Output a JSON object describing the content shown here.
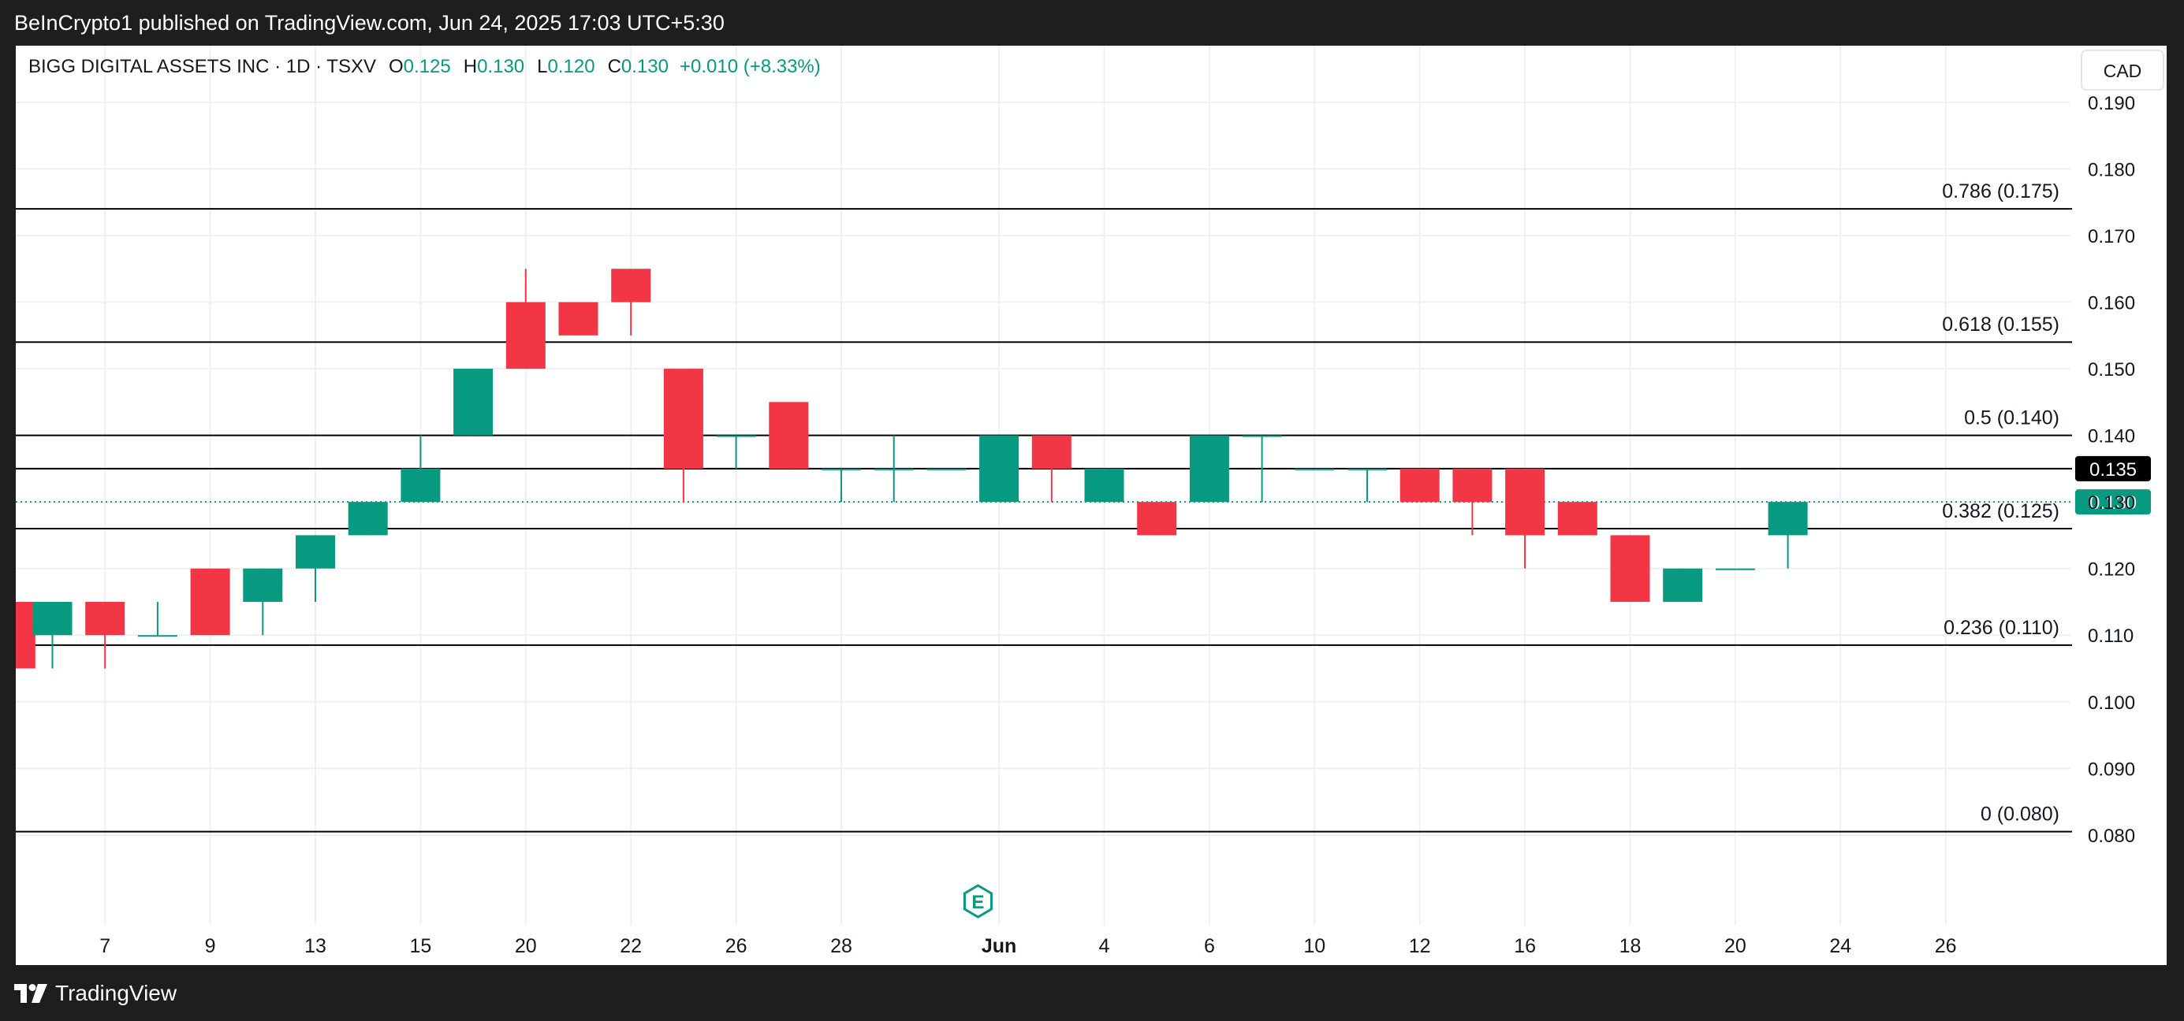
{
  "header": {
    "published": "BeInCrypto1 published on TradingView.com, Jun 24, 2025 17:03 UTC+5:30"
  },
  "legend": {
    "symbol": "BIGG DIGITAL ASSETS INC · 1D · TSXV",
    "o_label": "O",
    "o_value": "0.125",
    "h_label": "H",
    "h_value": "0.130",
    "l_label": "L",
    "l_value": "0.120",
    "c_label": "C",
    "c_value": "0.130",
    "change": "+0.010 (+8.33%)"
  },
  "footer": {
    "brand": "TradingView",
    "logo_icon": "tradingview-logo-icon"
  },
  "colors": {
    "up": "#089981",
    "down": "#f23645",
    "grid": "#f0f0f0",
    "fib_line": "#000000",
    "text": "#131722"
  },
  "chart_data": {
    "type": "candlestick",
    "currency": "CAD",
    "y_axis": {
      "ticks": [
        "0.190",
        "0.180",
        "0.170",
        "0.160",
        "0.150",
        "0.140",
        "0.130",
        "0.120",
        "0.110",
        "0.100",
        "0.090",
        "0.080"
      ],
      "ylim": [
        0.0665,
        0.1985
      ]
    },
    "x_axis": {
      "ticks": [
        {
          "i": 1,
          "label": "7"
        },
        {
          "i": 3,
          "label": "9"
        },
        {
          "i": 5,
          "label": "13"
        },
        {
          "i": 7,
          "label": "15"
        },
        {
          "i": 9,
          "label": "20"
        },
        {
          "i": 11,
          "label": "22"
        },
        {
          "i": 13,
          "label": "26"
        },
        {
          "i": 15,
          "label": "28"
        },
        {
          "i": 18,
          "label": "Jun",
          "bold": true
        },
        {
          "i": 20,
          "label": "4"
        },
        {
          "i": 22,
          "label": "6"
        },
        {
          "i": 24,
          "label": "10"
        },
        {
          "i": 26,
          "label": "12"
        },
        {
          "i": 28,
          "label": "16"
        },
        {
          "i": 30,
          "label": "18"
        },
        {
          "i": 32,
          "label": "20"
        },
        {
          "i": 34,
          "label": "24"
        },
        {
          "i": 36,
          "label": "26"
        }
      ]
    },
    "candles": [
      {
        "i": -0.7,
        "o": 0.115,
        "h": 0.115,
        "l": 0.105,
        "c": 0.105
      },
      {
        "i": 0,
        "o": 0.11,
        "h": 0.115,
        "l": 0.105,
        "c": 0.115
      },
      {
        "i": 1,
        "o": 0.115,
        "h": 0.115,
        "l": 0.105,
        "c": 0.11
      },
      {
        "i": 2,
        "o": 0.11,
        "h": 0.115,
        "l": 0.11,
        "c": 0.11
      },
      {
        "i": 3,
        "o": 0.12,
        "h": 0.12,
        "l": 0.11,
        "c": 0.11
      },
      {
        "i": 4,
        "o": 0.115,
        "h": 0.12,
        "l": 0.11,
        "c": 0.12
      },
      {
        "i": 5,
        "o": 0.12,
        "h": 0.125,
        "l": 0.115,
        "c": 0.125
      },
      {
        "i": 6,
        "o": 0.125,
        "h": 0.13,
        "l": 0.125,
        "c": 0.13
      },
      {
        "i": 7,
        "o": 0.13,
        "h": 0.14,
        "l": 0.13,
        "c": 0.135
      },
      {
        "i": 8,
        "o": 0.14,
        "h": 0.15,
        "l": 0.14,
        "c": 0.15
      },
      {
        "i": 9,
        "o": 0.16,
        "h": 0.165,
        "l": 0.15,
        "c": 0.15
      },
      {
        "i": 10,
        "o": 0.16,
        "h": 0.16,
        "l": 0.155,
        "c": 0.155
      },
      {
        "i": 11,
        "o": 0.165,
        "h": 0.165,
        "l": 0.155,
        "c": 0.16
      },
      {
        "i": 12,
        "o": 0.15,
        "h": 0.15,
        "l": 0.13,
        "c": 0.135
      },
      {
        "i": 13,
        "o": 0.14,
        "h": 0.14,
        "l": 0.135,
        "c": 0.14
      },
      {
        "i": 14,
        "o": 0.145,
        "h": 0.145,
        "l": 0.135,
        "c": 0.135
      },
      {
        "i": 15,
        "o": 0.135,
        "h": 0.135,
        "l": 0.13,
        "c": 0.135
      },
      {
        "i": 16,
        "o": 0.135,
        "h": 0.14,
        "l": 0.13,
        "c": 0.135
      },
      {
        "i": 17,
        "o": 0.135,
        "h": 0.135,
        "l": 0.135,
        "c": 0.135
      },
      {
        "i": 18,
        "o": 0.13,
        "h": 0.14,
        "l": 0.13,
        "c": 0.14
      },
      {
        "i": 19,
        "o": 0.14,
        "h": 0.14,
        "l": 0.13,
        "c": 0.135
      },
      {
        "i": 20,
        "o": 0.13,
        "h": 0.135,
        "l": 0.13,
        "c": 0.135
      },
      {
        "i": 21,
        "o": 0.13,
        "h": 0.13,
        "l": 0.125,
        "c": 0.125
      },
      {
        "i": 22,
        "o": 0.13,
        "h": 0.14,
        "l": 0.13,
        "c": 0.14
      },
      {
        "i": 23,
        "o": 0.14,
        "h": 0.14,
        "l": 0.13,
        "c": 0.14
      },
      {
        "i": 24,
        "o": 0.135,
        "h": 0.135,
        "l": 0.135,
        "c": 0.135
      },
      {
        "i": 25,
        "o": 0.135,
        "h": 0.135,
        "l": 0.13,
        "c": 0.135
      },
      {
        "i": 26,
        "o": 0.135,
        "h": 0.135,
        "l": 0.13,
        "c": 0.13
      },
      {
        "i": 27,
        "o": 0.135,
        "h": 0.135,
        "l": 0.125,
        "c": 0.13
      },
      {
        "i": 28,
        "o": 0.135,
        "h": 0.135,
        "l": 0.12,
        "c": 0.125
      },
      {
        "i": 29,
        "o": 0.13,
        "h": 0.13,
        "l": 0.125,
        "c": 0.125
      },
      {
        "i": 30,
        "o": 0.125,
        "h": 0.125,
        "l": 0.115,
        "c": 0.115
      },
      {
        "i": 31,
        "o": 0.115,
        "h": 0.12,
        "l": 0.115,
        "c": 0.12
      },
      {
        "i": 32,
        "o": 0.12,
        "h": 0.12,
        "l": 0.12,
        "c": 0.12
      },
      {
        "i": 33,
        "o": 0.125,
        "h": 0.13,
        "l": 0.12,
        "c": 0.13
      }
    ],
    "fib_levels": [
      {
        "label": "0.786 (0.175)",
        "value": 0.174
      },
      {
        "label": "0.618 (0.155)",
        "value": 0.154
      },
      {
        "label": "0.5 (0.140)",
        "value": 0.14
      },
      {
        "label": "0.382 (0.125)",
        "value": 0.126
      },
      {
        "label": "0.236 (0.110)",
        "value": 0.1085
      },
      {
        "label": "0 (0.080)",
        "value": 0.0805
      }
    ],
    "top_line": 0.2,
    "price_lines": [
      {
        "value": 0.135,
        "label": "0.135",
        "color": "#000000"
      },
      {
        "value": 0.13,
        "label": "0.130",
        "color": "#089981",
        "dotted": true
      }
    ],
    "earnings_marker": {
      "label": "E",
      "i": 17.6
    }
  }
}
